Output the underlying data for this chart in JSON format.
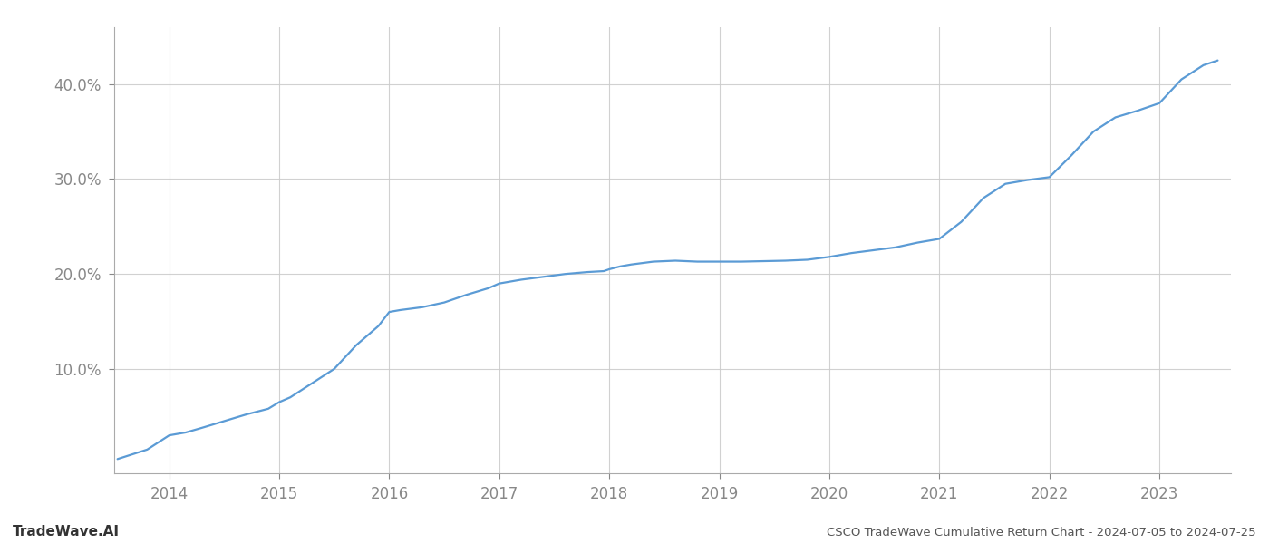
{
  "title": "CSCO TradeWave Cumulative Return Chart - 2024-07-05 to 2024-07-25",
  "watermark": "TradeWave.AI",
  "line_color": "#5b9bd5",
  "line_width": 1.6,
  "background_color": "#ffffff",
  "grid_color": "#cccccc",
  "x_values": [
    2013.53,
    2013.8,
    2014.0,
    2014.15,
    2014.3,
    2014.5,
    2014.7,
    2014.9,
    2015.0,
    2015.1,
    2015.3,
    2015.5,
    2015.7,
    2015.9,
    2016.0,
    2016.1,
    2016.3,
    2016.5,
    2016.7,
    2016.9,
    2017.0,
    2017.2,
    2017.4,
    2017.6,
    2017.8,
    2017.95,
    2018.0,
    2018.1,
    2018.2,
    2018.4,
    2018.6,
    2018.8,
    2019.0,
    2019.2,
    2019.4,
    2019.6,
    2019.8,
    2020.0,
    2020.2,
    2020.4,
    2020.6,
    2020.8,
    2021.0,
    2021.2,
    2021.4,
    2021.6,
    2021.8,
    2022.0,
    2022.2,
    2022.4,
    2022.6,
    2022.8,
    2023.0,
    2023.2,
    2023.4,
    2023.53
  ],
  "y_values": [
    0.5,
    1.5,
    3.0,
    3.3,
    3.8,
    4.5,
    5.2,
    5.8,
    6.5,
    7.0,
    8.5,
    10.0,
    12.5,
    14.5,
    16.0,
    16.2,
    16.5,
    17.0,
    17.8,
    18.5,
    19.0,
    19.4,
    19.7,
    20.0,
    20.2,
    20.3,
    20.5,
    20.8,
    21.0,
    21.3,
    21.4,
    21.3,
    21.3,
    21.3,
    21.35,
    21.4,
    21.5,
    21.8,
    22.2,
    22.5,
    22.8,
    23.3,
    23.7,
    25.5,
    28.0,
    29.5,
    29.9,
    30.2,
    32.5,
    35.0,
    36.5,
    37.2,
    38.0,
    40.5,
    42.0,
    42.5
  ],
  "xtick_labels": [
    "2014",
    "2015",
    "2016",
    "2017",
    "2018",
    "2019",
    "2020",
    "2021",
    "2022",
    "2023"
  ],
  "xtick_positions": [
    2014,
    2015,
    2016,
    2017,
    2018,
    2019,
    2020,
    2021,
    2022,
    2023
  ],
  "ytick_values": [
    10.0,
    20.0,
    30.0,
    40.0
  ],
  "ytick_labels": [
    "10.0%",
    "20.0%",
    "30.0%",
    "40.0%"
  ],
  "xlim": [
    2013.5,
    2023.65
  ],
  "ylim": [
    -1,
    46
  ]
}
